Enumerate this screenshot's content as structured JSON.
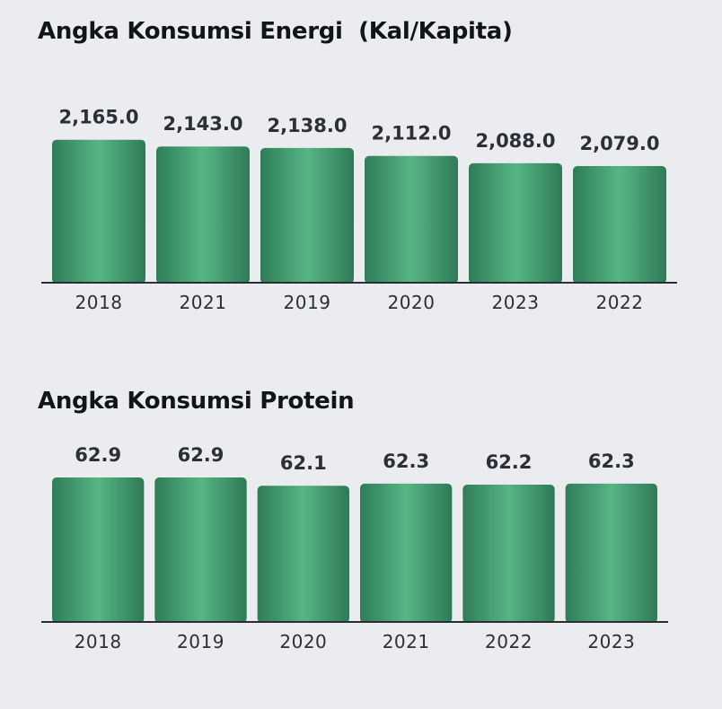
{
  "chart_data": [
    {
      "type": "bar",
      "title": "Angka Konsumsi Energi  (Kal/Kapita)",
      "categories": [
        "2018",
        "2021",
        "2019",
        "2020",
        "2023",
        "2022"
      ],
      "values": [
        2165.0,
        2143.0,
        2138.0,
        2112.0,
        2088.0,
        2079.0
      ],
      "value_labels": [
        "2,165.0",
        "2,143.0",
        "2,138.0",
        "2,112.0",
        "2,088.0",
        "2,079.0"
      ],
      "xlabel": "",
      "ylabel": "",
      "ylim": [
        1700,
        2170
      ],
      "grid": false,
      "legend": "none",
      "bar_color": "#3f9a6e",
      "bar_highlight": "#56b585"
    },
    {
      "type": "bar",
      "title": "Angka Konsumsi Protein",
      "categories": [
        "2018",
        "2019",
        "2020",
        "2021",
        "2022",
        "2023"
      ],
      "values": [
        62.9,
        62.9,
        62.1,
        62.3,
        62.2,
        62.3
      ],
      "value_labels": [
        "62.9",
        "62.9",
        "62.1",
        "62.3",
        "62.2",
        "62.3"
      ],
      "xlabel": "",
      "ylabel": "",
      "ylim": [
        49,
        62.9
      ],
      "grid": false,
      "legend": "none",
      "bar_color": "#3f9a6e",
      "bar_highlight": "#56b585"
    }
  ]
}
